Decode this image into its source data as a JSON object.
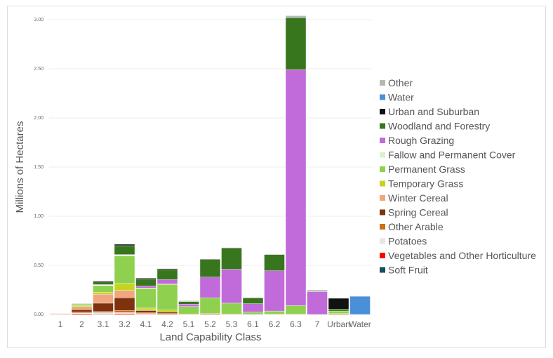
{
  "chart_data": {
    "type": "bar",
    "stacked": true,
    "xlabel": "Land Capability Class",
    "ylabel": "Millions of Hectares",
    "ylim": [
      0,
      3.0
    ],
    "yticks": [
      "0.00",
      "0.50",
      "1.00",
      "1.50",
      "2.00",
      "2.50",
      "3.00"
    ],
    "grid": true,
    "legend_position": "right",
    "categories": [
      "1",
      "2",
      "3.1",
      "3.2",
      "4.1",
      "4.2",
      "5.1",
      "5.2",
      "5.3",
      "6.1",
      "6.2",
      "6.3",
      "7",
      "Urban",
      "Water"
    ],
    "series": [
      {
        "name": "Soft Fruit",
        "color": "#134f5c",
        "values": [
          0,
          0,
          0.005,
          0,
          0,
          0,
          0,
          0,
          0,
          0,
          0,
          0,
          0,
          0,
          0
        ]
      },
      {
        "name": "Vegetables and Other Horticulture",
        "color": "#ff0000",
        "values": [
          0,
          0.01,
          0.005,
          0.01,
          0.005,
          0,
          0,
          0,
          0,
          0,
          0,
          0,
          0,
          0,
          0
        ]
      },
      {
        "name": "Potatoes",
        "color": "#e6e6e6",
        "values": [
          0,
          0.005,
          0.01,
          0.01,
          0.005,
          0,
          0,
          0,
          0,
          0,
          0,
          0,
          0,
          0,
          0
        ]
      },
      {
        "name": "Other Arable",
        "color": "#cc6f16",
        "values": [
          0.005,
          0.01,
          0.01,
          0.02,
          0.01,
          0.01,
          0.005,
          0.01,
          0.005,
          0,
          0.005,
          0.005,
          0,
          0.01,
          0
        ]
      },
      {
        "name": "Spring Cereal",
        "color": "#7f3210",
        "values": [
          0,
          0.025,
          0.085,
          0.13,
          0.02,
          0.015,
          0,
          0,
          0,
          0,
          0,
          0,
          0,
          0,
          0
        ]
      },
      {
        "name": "Winter Cereal",
        "color": "#f0a67f",
        "values": [
          0.005,
          0.03,
          0.09,
          0.075,
          0.005,
          0,
          0,
          0,
          0,
          0,
          0,
          0,
          0,
          0,
          0
        ]
      },
      {
        "name": "Temporary Grass",
        "color": "#c5d41f",
        "values": [
          0,
          0.01,
          0.02,
          0.07,
          0.02,
          0.02,
          0,
          0,
          0,
          0,
          0,
          0,
          0,
          0,
          0
        ]
      },
      {
        "name": "Permanent Grass",
        "color": "#8fd14f",
        "values": [
          0,
          0.015,
          0.07,
          0.28,
          0.2,
          0.26,
          0.075,
          0.16,
          0.11,
          0.025,
          0.03,
          0.085,
          0,
          0.025,
          0
        ]
      },
      {
        "name": "Fallow and Permanent Cover",
        "color": "#d9f2c7",
        "values": [
          0,
          0,
          0.005,
          0.01,
          0.005,
          0.005,
          0,
          0,
          0,
          0,
          0,
          0,
          0,
          0,
          0
        ]
      },
      {
        "name": "Rough Grazing",
        "color": "#c06bd9",
        "values": [
          0,
          0,
          0.005,
          0.005,
          0.02,
          0.045,
          0.025,
          0.21,
          0.345,
          0.085,
          0.41,
          2.4,
          0.23,
          0,
          0
        ]
      },
      {
        "name": "Woodland and Forestry",
        "color": "#38761d",
        "values": [
          0,
          0.005,
          0.025,
          0.09,
          0.07,
          0.1,
          0.025,
          0.18,
          0.215,
          0.06,
          0.165,
          0.53,
          0,
          0.02,
          0
        ]
      },
      {
        "name": "Urban and Suburban",
        "color": "#111111",
        "values": [
          0,
          0,
          0.01,
          0.015,
          0.01,
          0.01,
          0,
          0.005,
          0.005,
          0,
          0,
          0,
          0,
          0.11,
          0
        ]
      },
      {
        "name": "Water",
        "color": "#4a90d9",
        "values": [
          0,
          0,
          0,
          0,
          0,
          0,
          0,
          0,
          0,
          0,
          0,
          0,
          0,
          0,
          0.185
        ]
      },
      {
        "name": "Other",
        "color": "#b7b7b7",
        "values": [
          0,
          0,
          0,
          0.005,
          0,
          0.005,
          0.01,
          0,
          0,
          0,
          0.005,
          0.02,
          0.02,
          0.005,
          0
        ]
      }
    ]
  }
}
